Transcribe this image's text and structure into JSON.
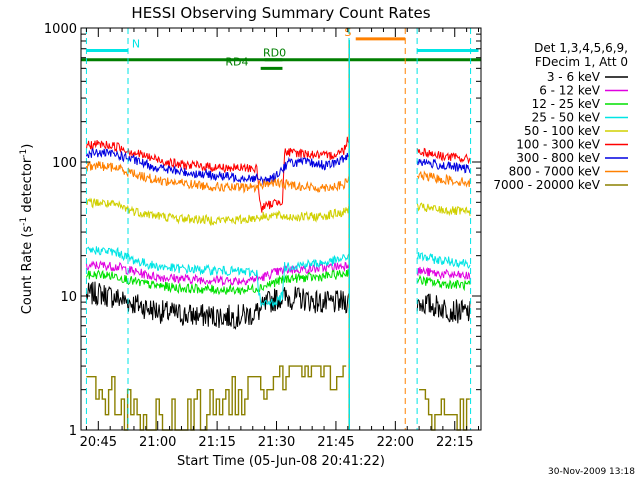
{
  "chart_data": {
    "type": "line",
    "title": "HESSI Observing Summary Count Rates",
    "xlabel": "Start Time (05-Jun-08 20:41:22)",
    "ylabel_main": "Count Rate (s",
    "ylabel_sup1": "-1",
    "ylabel_mid": " detector",
    "ylabel_sup2": "-1",
    "ylabel_end": ")",
    "yscale": "log",
    "ylim": [
      1,
      1000
    ],
    "xlim_minutes": [
      -4.37,
      96.63
    ],
    "x_ticks": [
      {
        "m": 0,
        "label": "20:45"
      },
      {
        "m": 15,
        "label": "21:00"
      },
      {
        "m": 30,
        "label": "21:15"
      },
      {
        "m": 45,
        "label": "21:30"
      },
      {
        "m": 60,
        "label": "21:45"
      },
      {
        "m": 75,
        "label": "22:00"
      },
      {
        "m": 90,
        "label": "22:15"
      }
    ],
    "y_ticks": [
      {
        "v": 1,
        "label": "1"
      },
      {
        "v": 10,
        "label": "10"
      },
      {
        "v": 100,
        "label": "100"
      },
      {
        "v": 1000,
        "label": "1000"
      }
    ],
    "legend_header": [
      "Det 1,3,4,5,6,9,",
      "FDecim 1, Att 0"
    ],
    "legend_position": "top-right",
    "timestamp": "30-Nov-2009 13:18",
    "data_gaps": [
      {
        "start": -4.37,
        "end": -3.0
      },
      {
        "start": 63.3,
        "end": 80.5
      }
    ],
    "dashed_markers": [
      {
        "m": -3.0,
        "color": "#00e5e5"
      },
      {
        "m": 7.5,
        "color": "#00e5e5"
      },
      {
        "m": 63.3,
        "color": "#00e5e5"
      },
      {
        "m": 77.5,
        "color": "#ff8000"
      },
      {
        "m": 80.5,
        "color": "#00e5e5"
      },
      {
        "m": 94.0,
        "color": "#00e5e5"
      }
    ],
    "flag_bars": [
      {
        "label": "N",
        "start": -3.0,
        "end": 7.5,
        "y_level": 680,
        "color": "#00e5e5",
        "label_m": 9.5
      },
      {
        "label": "",
        "start": 80.5,
        "end": 96.0,
        "y_level": 680,
        "color": "#00e5e5",
        "label_m": null
      },
      {
        "label": "S",
        "start": 65.0,
        "end": 77.5,
        "y_level": 830,
        "color": "#ff8000",
        "label_m": 63.0
      },
      {
        "label": "",
        "start": -4.37,
        "end": 96.63,
        "y_level": 580,
        "color": "#007f00",
        "label_m": null
      },
      {
        "label": "RD0",
        "start": 42.0,
        "end": 46.5,
        "y_level": 580,
        "color": "#007f00",
        "label_m": 44.5
      },
      {
        "label": "RD4",
        "start": 41.0,
        "end": 46.5,
        "y_level": 500,
        "color": "#007f00",
        "label_m": 35.0
      }
    ],
    "vertical_events": [
      {
        "m": 63.3,
        "color": "#ff8000"
      },
      {
        "m": 63.4,
        "color": "#00e5e5"
      }
    ],
    "series": [
      {
        "name": "3 - 6 keV",
        "color": "#000000",
        "points": [
          [
            -3,
            10.2
          ],
          [
            0,
            10.5
          ],
          [
            4,
            9.8
          ],
          [
            8,
            9.0
          ],
          [
            12,
            8.2
          ],
          [
            16,
            7.6
          ],
          [
            22,
            7.2
          ],
          [
            28,
            7.1
          ],
          [
            34,
            7.0
          ],
          [
            38,
            7.2
          ],
          [
            41,
            7.8
          ],
          [
            43,
            9.0
          ],
          [
            46,
            9.8
          ],
          [
            52,
            9.5
          ],
          [
            57,
            8.8
          ],
          [
            62,
            9.0
          ],
          [
            63.2,
            9.2
          ],
          [
            80.5,
            9.0
          ],
          [
            86,
            8.3
          ],
          [
            90,
            7.7
          ],
          [
            94,
            7.5
          ]
        ]
      },
      {
        "name": "6 - 12 keV",
        "color": "#e000e0",
        "points": [
          [
            -3,
            16.5
          ],
          [
            0,
            17.0
          ],
          [
            5,
            16.5
          ],
          [
            9,
            15.2
          ],
          [
            14,
            14.0
          ],
          [
            20,
            13.5
          ],
          [
            28,
            13.2
          ],
          [
            36,
            13.0
          ],
          [
            41,
            13.6
          ],
          [
            44,
            14.8
          ],
          [
            48,
            15.8
          ],
          [
            55,
            16.0
          ],
          [
            62,
            16.8
          ],
          [
            63.2,
            17.5
          ],
          [
            80.5,
            15.5
          ],
          [
            86,
            14.6
          ],
          [
            94,
            14.0
          ]
        ]
      },
      {
        "name": "12 - 25 keV",
        "color": "#00e000",
        "points": [
          [
            -3,
            14.2
          ],
          [
            0,
            14.5
          ],
          [
            5,
            14.0
          ],
          [
            9,
            12.8
          ],
          [
            14,
            12.0
          ],
          [
            20,
            11.5
          ],
          [
            28,
            11.2
          ],
          [
            36,
            11.0
          ],
          [
            41,
            11.6
          ],
          [
            44,
            12.5
          ],
          [
            48,
            13.5
          ],
          [
            55,
            13.8
          ],
          [
            62,
            14.6
          ],
          [
            63.2,
            15.2
          ],
          [
            80.5,
            13.2
          ],
          [
            86,
            12.4
          ],
          [
            94,
            12.0
          ]
        ]
      },
      {
        "name": "25 - 50 keV",
        "color": "#00e5e5",
        "points": [
          [
            -3,
            21.5
          ],
          [
            0,
            22.0
          ],
          [
            5,
            21.0
          ],
          [
            9,
            18.5
          ],
          [
            14,
            16.8
          ],
          [
            20,
            16.0
          ],
          [
            28,
            15.6
          ],
          [
            36,
            15.2
          ],
          [
            40,
            15.0
          ],
          [
            41,
            8.5
          ],
          [
            45,
            9.2
          ],
          [
            46.5,
            10.0
          ],
          [
            47,
            16.5
          ],
          [
            52,
            17.2
          ],
          [
            58,
            17.8
          ],
          [
            62,
            19.0
          ],
          [
            63.2,
            20.0
          ],
          [
            80.5,
            20.0
          ],
          [
            86,
            18.5
          ],
          [
            94,
            17.5
          ]
        ]
      },
      {
        "name": "50 - 100 keV",
        "color": "#d0d000",
        "points": [
          [
            -3,
            49
          ],
          [
            0,
            50
          ],
          [
            5,
            47
          ],
          [
            9,
            43
          ],
          [
            14,
            40
          ],
          [
            20,
            38
          ],
          [
            28,
            37
          ],
          [
            36,
            37
          ],
          [
            41,
            39
          ],
          [
            44,
            40
          ],
          [
            48,
            39
          ],
          [
            55,
            39
          ],
          [
            62,
            42
          ],
          [
            63.2,
            45
          ],
          [
            80.5,
            46
          ],
          [
            86,
            44
          ],
          [
            94,
            42
          ]
        ]
      },
      {
        "name": "100 - 300 keV",
        "color": "#ff0000",
        "points": [
          [
            -3,
            132
          ],
          [
            0,
            136
          ],
          [
            5,
            130
          ],
          [
            9,
            118
          ],
          [
            14,
            106
          ],
          [
            20,
            96
          ],
          [
            28,
            92
          ],
          [
            34,
            90
          ],
          [
            40,
            90
          ],
          [
            41,
            45
          ],
          [
            44,
            49
          ],
          [
            46.5,
            52
          ],
          [
            47,
            118
          ],
          [
            52,
            116
          ],
          [
            58,
            110
          ],
          [
            62,
            122
          ],
          [
            63,
            150
          ],
          [
            80.5,
            122
          ],
          [
            86,
            112
          ],
          [
            94,
            104
          ]
        ]
      },
      {
        "name": "300 - 800 keV",
        "color": "#0000e0",
        "points": [
          [
            -3,
            115
          ],
          [
            0,
            117
          ],
          [
            5,
            113
          ],
          [
            9,
            103
          ],
          [
            14,
            92
          ],
          [
            20,
            85
          ],
          [
            28,
            80
          ],
          [
            34,
            77
          ],
          [
            40,
            76
          ],
          [
            41,
            72
          ],
          [
            44,
            75
          ],
          [
            48,
            99
          ],
          [
            52,
            100
          ],
          [
            58,
            94
          ],
          [
            62,
            105
          ],
          [
            63.2,
            115
          ],
          [
            80.5,
            102
          ],
          [
            86,
            95
          ],
          [
            94,
            88
          ]
        ]
      },
      {
        "name": "800 - 7000 keV",
        "color": "#ff8000",
        "points": [
          [
            -3,
            92
          ],
          [
            0,
            94
          ],
          [
            5,
            90
          ],
          [
            9,
            82
          ],
          [
            14,
            74
          ],
          [
            20,
            70
          ],
          [
            28,
            66
          ],
          [
            34,
            64
          ],
          [
            40,
            65
          ],
          [
            41,
            68
          ],
          [
            44,
            70
          ],
          [
            48,
            68
          ],
          [
            55,
            64
          ],
          [
            62,
            67
          ],
          [
            63.2,
            75
          ],
          [
            80.5,
            80
          ],
          [
            86,
            75
          ],
          [
            94,
            70
          ]
        ]
      },
      {
        "name": "7000 - 20000 keV",
        "color": "#8b8000",
        "points": [
          [
            -3,
            2.0
          ],
          [
            0,
            2.0
          ],
          [
            5,
            1.6
          ],
          [
            9,
            1.3
          ],
          [
            14,
            1.2
          ],
          [
            20,
            1.2
          ],
          [
            28,
            1.4
          ],
          [
            34,
            1.6
          ],
          [
            40,
            2.0
          ],
          [
            44,
            2.4
          ],
          [
            48,
            2.6
          ],
          [
            52,
            2.8
          ],
          [
            56,
            2.5
          ],
          [
            60,
            2.7
          ],
          [
            63.2,
            4.0
          ],
          [
            80.5,
            1.5
          ],
          [
            86,
            1.3
          ],
          [
            94,
            1.3
          ]
        ]
      }
    ]
  }
}
